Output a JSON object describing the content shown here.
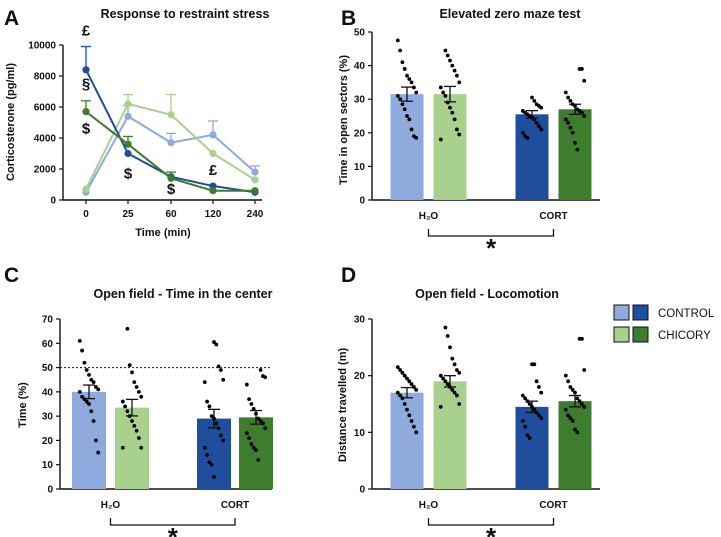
{
  "colors": {
    "control_cort": "#1f4e9c",
    "control_h2o": "#8faadc",
    "chicory_cort": "#3e7c2e",
    "chicory_h2o": "#a9d18e",
    "axis": "#111111"
  },
  "legend": {
    "control": "CONTROL",
    "chicory": "CHICORY"
  },
  "chart_data": [
    {
      "panel": "A",
      "type": "line",
      "title": "Response to restraint stress",
      "xlabel": "Time (min)",
      "ylabel": "Corticosterone (pg/ml)",
      "categories": [
        "0",
        "25",
        "60",
        "120",
        "240"
      ],
      "ylim": [
        0,
        10000
      ],
      "yticks": [
        "0",
        "2000",
        "4000",
        "6000",
        "8000",
        "10000"
      ],
      "series": [
        {
          "name": "Control H2O",
          "values": [
            500,
            5400,
            3700,
            4200,
            1800
          ],
          "err": [
            0,
            700,
            600,
            900,
            400
          ]
        },
        {
          "name": "Chicory H2O",
          "values": [
            700,
            6200,
            5500,
            3000,
            1300
          ],
          "err": [
            0,
            600,
            1300,
            0,
            0
          ]
        },
        {
          "name": "Control CORT",
          "values": [
            8400,
            3000,
            1500,
            900,
            500
          ],
          "err": [
            1500,
            0,
            0,
            0,
            0
          ]
        },
        {
          "name": "Chicory CORT",
          "values": [
            5700,
            3600,
            1400,
            600,
            600
          ],
          "err": [
            700,
            500,
            400,
            0,
            0
          ]
        }
      ],
      "annotations": [
        {
          "text": "£",
          "category": "0",
          "y": 10600
        },
        {
          "text": "§",
          "category": "0",
          "y": 7200
        },
        {
          "text": "$",
          "category": "0",
          "y": 4300
        },
        {
          "text": "$",
          "category": "25",
          "y": 1400
        },
        {
          "text": "$",
          "category": "60",
          "y": 400
        },
        {
          "text": "£",
          "category": "120",
          "y": 1600
        }
      ]
    },
    {
      "panel": "B",
      "type": "bar",
      "title": "Elevated zero maze test",
      "ylabel": "Time in open sectors (%)",
      "xlabel": "",
      "groups": [
        "H₂O",
        "CORT"
      ],
      "ylim": [
        0,
        50
      ],
      "yticks": [
        "0",
        "10",
        "20",
        "30",
        "40",
        "50"
      ],
      "series": [
        {
          "name": "Control H2O",
          "value": 31.5,
          "sem": 2.1,
          "points": [
            47.5,
            44.5,
            41,
            39,
            37,
            36,
            35,
            33.5,
            32,
            31,
            30,
            28.5,
            27,
            25,
            24,
            21,
            19,
            18.5
          ]
        },
        {
          "name": "Chicory H2O",
          "value": 31.5,
          "sem": 2.3,
          "points": [
            44.5,
            43,
            41.5,
            40,
            38.5,
            37,
            35,
            33.5,
            32,
            31,
            29,
            27.5,
            26,
            24,
            21,
            19.5,
            18
          ]
        },
        {
          "name": "Control CORT",
          "value": 25.5,
          "sem": 1.1,
          "points": [
            30.5,
            29.5,
            28.5,
            28,
            27.5,
            26.5,
            26,
            25.5,
            25,
            24.5,
            24,
            23,
            22,
            21,
            20,
            19,
            18.5
          ]
        },
        {
          "name": "Chicory CORT",
          "value": 27,
          "sem": 1.5,
          "points": [
            39,
            39,
            35.5,
            32,
            30.5,
            29.5,
            28.5,
            28,
            27,
            26.5,
            26,
            25,
            24,
            23,
            21.5,
            20,
            17,
            15
          ]
        }
      ],
      "significance": "*"
    },
    {
      "panel": "C",
      "type": "bar",
      "title": "Open field - Time in the center",
      "ylabel": "Time (%)",
      "xlabel": "",
      "groups": [
        "H₂O",
        "CORT"
      ],
      "ylim": [
        0,
        70
      ],
      "yticks": [
        "0",
        "10",
        "20",
        "30",
        "40",
        "50",
        "60",
        "70"
      ],
      "reference_line": 50,
      "series": [
        {
          "name": "Control H2O",
          "value": 40,
          "sem": 2.8,
          "points": [
            61,
            57,
            52,
            49,
            47,
            45,
            44,
            42,
            41,
            40,
            38,
            37,
            36,
            35,
            32,
            28,
            20,
            15
          ]
        },
        {
          "name": "Chicory H2O",
          "value": 33.5,
          "sem": 3.4,
          "points": [
            66,
            51,
            48,
            44,
            42,
            40,
            38,
            36,
            34,
            32,
            30,
            28,
            26,
            24,
            21,
            17,
            17
          ]
        },
        {
          "name": "Control CORT",
          "value": 29,
          "sem": 3.8,
          "points": [
            60.5,
            59.5,
            50.5,
            49,
            45,
            44,
            36,
            34,
            30,
            29,
            27,
            25,
            22,
            20,
            17,
            14,
            11,
            10,
            5
          ]
        },
        {
          "name": "Chicory CORT",
          "value": 29.5,
          "sem": 2.8,
          "points": [
            49,
            46.5,
            46,
            43,
            37,
            35,
            33,
            31,
            29,
            28,
            27,
            25,
            23,
            21,
            18.5,
            17,
            16,
            12
          ]
        }
      ],
      "significance": "*"
    },
    {
      "panel": "D",
      "type": "bar",
      "title": "Open field - Locomotion",
      "ylabel": "Distance travelled  (m)",
      "xlabel": "",
      "groups": [
        "H₂O",
        "CORT"
      ],
      "ylim": [
        0,
        30
      ],
      "yticks": [
        "0",
        "10",
        "20",
        "30"
      ],
      "series": [
        {
          "name": "Control H2O",
          "value": 17,
          "sem": 0.9,
          "points": [
            21.5,
            21,
            20.5,
            20,
            19.5,
            19,
            18.5,
            18,
            17.5,
            17,
            16.5,
            16,
            15,
            14,
            13,
            12,
            11,
            10
          ]
        },
        {
          "name": "Chicory H2O",
          "value": 19,
          "sem": 1.0,
          "points": [
            28.5,
            27,
            25,
            23,
            22,
            21,
            20.5,
            20,
            19.5,
            19,
            18.5,
            18,
            17.5,
            17,
            16.5,
            15,
            14.5
          ]
        },
        {
          "name": "Control CORT",
          "value": 14.5,
          "sem": 1.0,
          "points": [
            22,
            22,
            19,
            18,
            17,
            16.5,
            16,
            15.5,
            15,
            14.5,
            14,
            13.5,
            13,
            12.5,
            12,
            11,
            9.5,
            9
          ]
        },
        {
          "name": "Chicory CORT",
          "value": 15.5,
          "sem": 1.0,
          "points": [
            26.5,
            26.5,
            21,
            20,
            19,
            18,
            17.5,
            17,
            16,
            15.5,
            15,
            14.5,
            14,
            13,
            12.5,
            12,
            10.5,
            10
          ]
        }
      ],
      "significance": "*"
    }
  ]
}
